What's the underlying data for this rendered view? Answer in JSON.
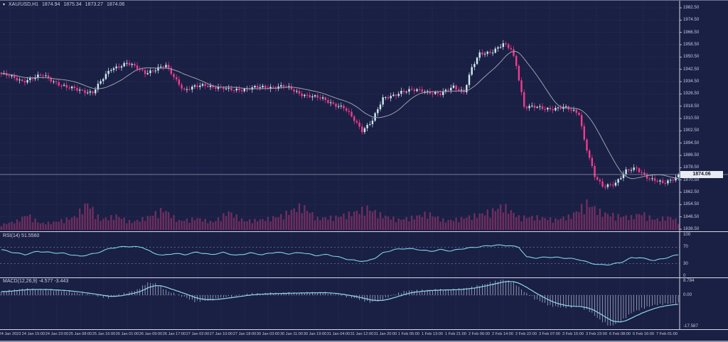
{
  "window": {
    "dropdown_marker": "▾",
    "symbol_period": "XAU/USD,H1",
    "open": "1874.94",
    "high": "1875.34",
    "low": "1873.27",
    "close": "1874.06"
  },
  "indicators": {
    "rsi_label": "RSI(14) 51.5560",
    "macd_label": "MACD(12,26,9) -4.577 -3.443"
  },
  "axes": {
    "current_price": "1874.06",
    "price_labels": [
      "1982.50",
      "1974.50",
      "1966.50",
      "1958.50",
      "1950.50",
      "1942.50",
      "1934.50",
      "1926.50",
      "1918.50",
      "1910.50",
      "1902.50",
      "1894.50",
      "1886.50",
      "1878.50",
      "1870.50",
      "1862.50",
      "1854.50",
      "1846.50",
      "1838.50"
    ],
    "rsi_labels": [
      [
        "100",
        330
      ],
      [
        "70",
        347.3
      ],
      [
        "30",
        370.7
      ],
      [
        "0",
        388
      ]
    ],
    "macd_labels": [
      [
        "8.784",
        395
      ],
      [
        "0.00",
        415
      ],
      [
        "-17.587",
        459
      ]
    ],
    "time_labels": [
      "24 Jan 2023",
      "24 Jan 15:00",
      "24 Jan 23:00",
      "25 Jan 08:00",
      "25 Jan 16:00",
      "26 Jan 01:00",
      "26 Jan 09:00",
      "26 Jan 17:00",
      "27 Jan 02:00",
      "27 Jan 10:00",
      "27 Jan 18:00",
      "30 Jan 03:00",
      "30 Jan 11:00",
      "30 Jan 19:00",
      "31 Jan 04:00",
      "31 Jan 12:00",
      "31 Jan 20:00",
      "1 Feb 05:00",
      "1 Feb 13:00",
      "1 Feb 21:00",
      "2 Feb 06:00",
      "2 Feb 14:00",
      "2 Feb 22:00",
      "3 Feb 07:00",
      "3 Feb 15:00",
      "3 Feb 23:00",
      "6 Feb 08:00",
      "6 Feb 16:00",
      "7 Feb 01:00"
    ]
  },
  "colors": {
    "background": "#1a1f44",
    "grid": "#333b6e",
    "bear": "#f03c8c",
    "bull": "#cfe9ef",
    "ma_line": "#9ba1ae",
    "volume": "#6e2e60",
    "rsi_line": "#7fd4e6",
    "macd_signal": "#8fd9ea",
    "macd_histogram": "#b9c3da",
    "level_dashed": "#6a74a4",
    "separator": "#d8dae6",
    "price_line": "#aab0c4",
    "tag_bg": "#e9ebf2"
  },
  "chart_data": {
    "type": "candlestick",
    "symbol": "XAU/USD",
    "timeframe": "H1",
    "bars": 260,
    "price_axis": {
      "min": 1838.5,
      "max": 1982.5,
      "step": 8
    },
    "last_close": 1874.06,
    "close_path_anchors": [
      [
        0,
        1939.5
      ],
      [
        8,
        1935
      ],
      [
        16,
        1938.5
      ],
      [
        25,
        1930.5
      ],
      [
        35,
        1927.5
      ],
      [
        42,
        1943
      ],
      [
        48,
        1946.5
      ],
      [
        55,
        1940.5
      ],
      [
        63,
        1944.5
      ],
      [
        70,
        1929
      ],
      [
        78,
        1932.5
      ],
      [
        87,
        1929
      ],
      [
        98,
        1930.5
      ],
      [
        108,
        1931.5
      ],
      [
        114,
        1927
      ],
      [
        123,
        1923
      ],
      [
        131,
        1917.5
      ],
      [
        138,
        1903
      ],
      [
        142,
        1909.5
      ],
      [
        146,
        1923
      ],
      [
        153,
        1928
      ],
      [
        161,
        1929
      ],
      [
        168,
        1926
      ],
      [
        173,
        1931.5
      ],
      [
        177,
        1928
      ],
      [
        180,
        1943
      ],
      [
        183,
        1952.5
      ],
      [
        188,
        1954.5
      ],
      [
        192,
        1958.5
      ],
      [
        195,
        1955.5
      ],
      [
        197,
        1945.5
      ],
      [
        200,
        1918.5
      ],
      [
        207,
        1917
      ],
      [
        215,
        1917.5
      ],
      [
        221,
        1914
      ],
      [
        223,
        1897
      ],
      [
        227,
        1872.5
      ],
      [
        230,
        1866
      ],
      [
        235,
        1869
      ],
      [
        239,
        1876
      ],
      [
        243,
        1878
      ],
      [
        248,
        1871.5
      ],
      [
        253,
        1868
      ],
      [
        256,
        1870.5
      ],
      [
        259,
        1874.06
      ]
    ],
    "ma_period": 16,
    "volume_anchors": [
      [
        0,
        0.15
      ],
      [
        6,
        0.3
      ],
      [
        10,
        0.55
      ],
      [
        15,
        0.2
      ],
      [
        20,
        0.25
      ],
      [
        28,
        0.45
      ],
      [
        33,
        1.0
      ],
      [
        38,
        0.35
      ],
      [
        44,
        0.5
      ],
      [
        50,
        0.25
      ],
      [
        56,
        0.45
      ],
      [
        62,
        0.75
      ],
      [
        68,
        0.3
      ],
      [
        75,
        0.4
      ],
      [
        81,
        0.25
      ],
      [
        87,
        0.65
      ],
      [
        93,
        0.3
      ],
      [
        100,
        0.35
      ],
      [
        107,
        0.5
      ],
      [
        115,
        0.9
      ],
      [
        121,
        0.4
      ],
      [
        128,
        0.45
      ],
      [
        134,
        0.6
      ],
      [
        140,
        0.8
      ],
      [
        146,
        0.5
      ],
      [
        152,
        0.35
      ],
      [
        158,
        0.45
      ],
      [
        163,
        0.6
      ],
      [
        170,
        0.3
      ],
      [
        176,
        0.4
      ],
      [
        183,
        0.55
      ],
      [
        188,
        0.7
      ],
      [
        192,
        0.9
      ],
      [
        198,
        0.45
      ],
      [
        205,
        0.45
      ],
      [
        212,
        0.35
      ],
      [
        218,
        0.5
      ],
      [
        224,
        1.0
      ],
      [
        230,
        0.6
      ],
      [
        236,
        0.5
      ],
      [
        241,
        0.45
      ],
      [
        245,
        0.6
      ],
      [
        250,
        0.35
      ],
      [
        256,
        0.45
      ],
      [
        259,
        0.3
      ]
    ],
    "rsi": {
      "period": 14,
      "last": 51.556,
      "levels": [
        70,
        30
      ],
      "range": [
        0,
        100
      ],
      "anchors": [
        [
          0,
          64
        ],
        [
          4,
          58
        ],
        [
          9,
          52
        ],
        [
          14,
          60
        ],
        [
          19,
          57
        ],
        [
          24,
          55
        ],
        [
          30,
          48
        ],
        [
          36,
          55
        ],
        [
          42,
          68
        ],
        [
          48,
          72
        ],
        [
          54,
          70
        ],
        [
          58,
          56
        ],
        [
          62,
          50
        ],
        [
          66,
          55
        ],
        [
          70,
          52
        ],
        [
          75,
          58
        ],
        [
          80,
          52
        ],
        [
          85,
          57
        ],
        [
          90,
          50
        ],
        [
          95,
          56
        ],
        [
          100,
          52
        ],
        [
          105,
          58
        ],
        [
          110,
          54
        ],
        [
          115,
          57
        ],
        [
          120,
          50
        ],
        [
          125,
          52
        ],
        [
          129,
          46
        ],
        [
          133,
          40
        ],
        [
          136,
          37
        ],
        [
          140,
          36
        ],
        [
          143,
          44
        ],
        [
          146,
          56
        ],
        [
          150,
          64
        ],
        [
          155,
          67
        ],
        [
          160,
          64
        ],
        [
          164,
          60
        ],
        [
          168,
          64
        ],
        [
          172,
          61
        ],
        [
          176,
          66
        ],
        [
          180,
          69
        ],
        [
          184,
          72
        ],
        [
          189,
          75
        ],
        [
          194,
          74
        ],
        [
          198,
          70
        ],
        [
          201,
          46
        ],
        [
          205,
          44
        ],
        [
          209,
          46
        ],
        [
          213,
          45
        ],
        [
          217,
          43
        ],
        [
          221,
          40
        ],
        [
          225,
          32
        ],
        [
          229,
          27
        ],
        [
          233,
          28
        ],
        [
          237,
          33
        ],
        [
          241,
          44
        ],
        [
          244,
          45
        ],
        [
          247,
          41
        ],
        [
          250,
          38
        ],
        [
          253,
          42
        ],
        [
          256,
          47
        ],
        [
          259,
          52
        ]
      ]
    },
    "macd": {
      "params": "12,26,9",
      "last_main": -4.577,
      "last_signal": -3.443,
      "scale_max": 8.784,
      "scale_min": -17.587,
      "signal_period": 9,
      "main_anchors": [
        [
          0,
          2
        ],
        [
          8,
          3.5
        ],
        [
          16,
          3.2
        ],
        [
          25,
          2.2
        ],
        [
          35,
          0
        ],
        [
          41,
          -1.5
        ],
        [
          46,
          0.5
        ],
        [
          52,
          3
        ],
        [
          56,
          7
        ],
        [
          59,
          6.5
        ],
        [
          64,
          2
        ],
        [
          70,
          -1
        ],
        [
          74,
          -3.5
        ],
        [
          79,
          -3
        ],
        [
          86,
          -1
        ],
        [
          95,
          0.8
        ],
        [
          109,
          1.2
        ],
        [
          123,
          1.5
        ],
        [
          128,
          0.5
        ],
        [
          136,
          -2
        ],
        [
          141,
          -4
        ],
        [
          145,
          -3
        ],
        [
          150,
          0.2
        ],
        [
          155,
          2.5
        ],
        [
          164,
          3
        ],
        [
          174,
          3.2
        ],
        [
          180,
          4.5
        ],
        [
          187,
          7
        ],
        [
          192,
          8.8
        ],
        [
          196,
          7.2
        ],
        [
          200,
          2
        ],
        [
          204,
          -2
        ],
        [
          210,
          -6
        ],
        [
          215,
          -7
        ],
        [
          221,
          -6.5
        ],
        [
          225,
          -9
        ],
        [
          229,
          -14
        ],
        [
          233,
          -17.5
        ],
        [
          237,
          -15
        ],
        [
          241,
          -10
        ],
        [
          245,
          -7.5
        ],
        [
          250,
          -5.5
        ],
        [
          255,
          -4.8
        ],
        [
          259,
          -4.6
        ]
      ]
    },
    "render_hints": {
      "close_noise": [
        0.85,
        1.9,
        0.65,
        0.53
      ],
      "wick_noise": [
        0.5,
        1.6
      ],
      "rsi_noise": [
        1.1,
        1.13
      ],
      "volume_jitter": 1.31,
      "grid_x_start": 14,
      "grid_x_step": 33,
      "price_y_start": 10,
      "price_y_step": 17.3333
    }
  }
}
